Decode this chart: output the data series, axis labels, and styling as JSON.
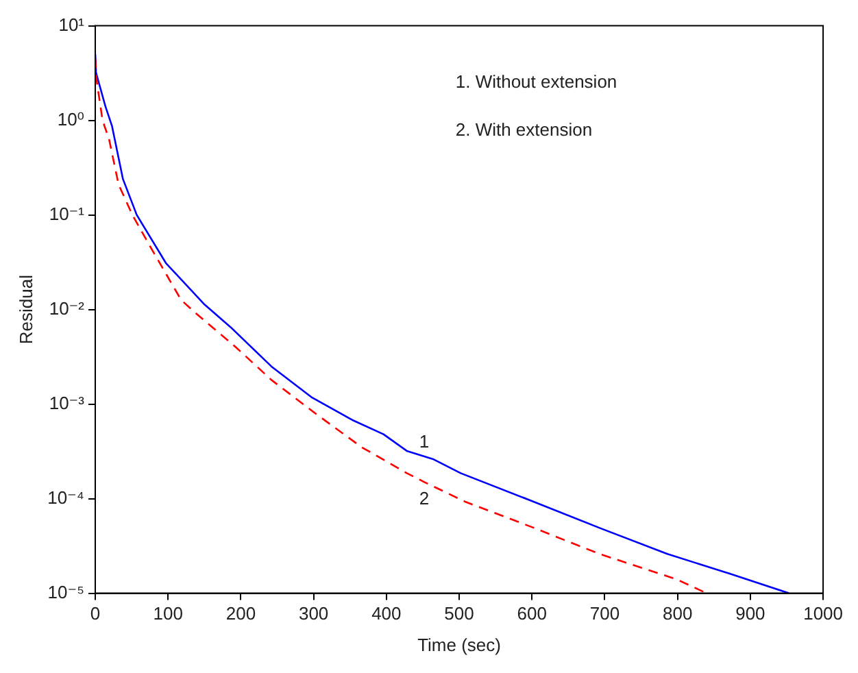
{
  "chart_data": {
    "type": "line",
    "xlabel": "Time (sec)",
    "ylabel": "Residual",
    "log": "y",
    "legend": false,
    "grid": false,
    "xlim": [
      0,
      1000
    ],
    "xticks": [
      0,
      100,
      200,
      300,
      400,
      500,
      600,
      700,
      800,
      900,
      1000
    ],
    "ylim": [
      1e-05,
      10
    ],
    "yticks": [
      {
        "value": 1e-05,
        "label": "10⁻⁵"
      },
      {
        "value": 0.0001,
        "label": "10⁻⁴"
      },
      {
        "value": 0.001,
        "label": "10⁻³"
      },
      {
        "value": 0.01,
        "label": "10⁻²"
      },
      {
        "value": 0.1,
        "label": "10⁻¹"
      },
      {
        "value": 1,
        "label": "10⁰"
      },
      {
        "value": 10,
        "label": "10¹"
      }
    ],
    "series": [
      {
        "color": "#0000ff",
        "line_style": "solid",
        "x": [
          0,
          1,
          14,
          23,
          38,
          57,
          97,
          149,
          186,
          242,
          298,
          353,
          396,
          428,
          465,
          502,
          595,
          693,
          786,
          873,
          953
        ],
        "values": [
          5,
          3.2,
          1.4,
          0.87,
          0.24,
          0.1,
          0.031,
          0.0115,
          0.0065,
          0.0025,
          0.00117,
          0.00068,
          0.00048,
          0.00032,
          0.00026,
          0.000186,
          9.77e-05,
          4.9e-05,
          2.6e-05,
          1.6e-05,
          1e-05
        ]
      },
      {
        "color": "#ff0000",
        "line_style": "dashed",
        "x": [
          0,
          2,
          10,
          19,
          32,
          51,
          75,
          118,
          137,
          193,
          242,
          304,
          366,
          428,
          452,
          508,
          600,
          693,
          799,
          840
        ],
        "values": [
          4.5,
          2.6,
          1,
          0.63,
          0.21,
          0.1,
          0.047,
          0.0126,
          0.0093,
          0.004,
          0.0018,
          0.00078,
          0.00035,
          0.000186,
          0.00015,
          9.3e-05,
          5e-05,
          2.6e-05,
          1.4e-05,
          1e-05
        ]
      }
    ],
    "annotations": [
      "1. Without extension",
      "2. With extension",
      "1",
      "2"
    ]
  }
}
